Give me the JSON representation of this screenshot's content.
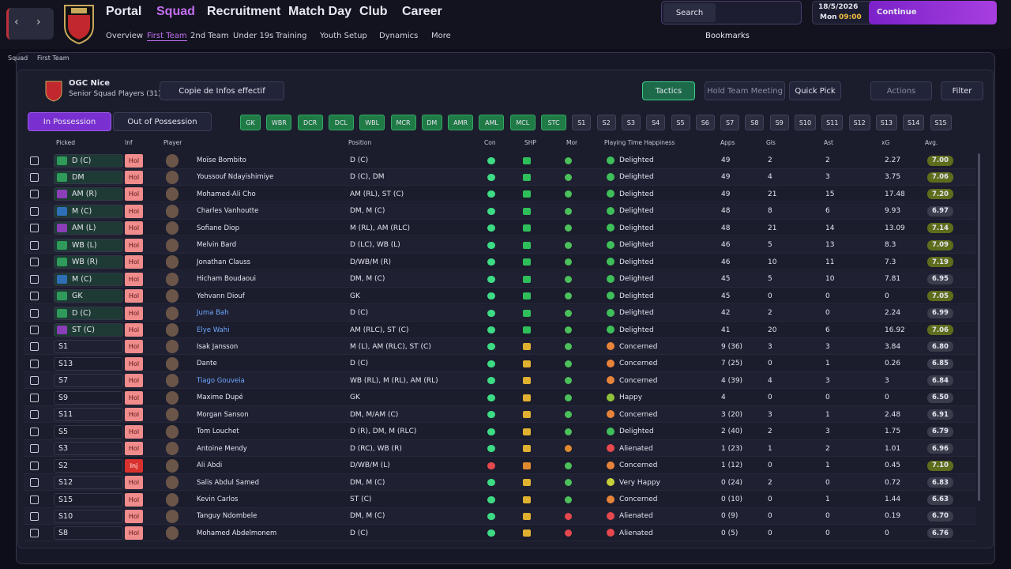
{
  "nav": {
    "menu": [
      "Portal",
      "Squad",
      "Recruitment",
      "Match Day",
      "Club",
      "Career"
    ],
    "submenu": [
      "Overview",
      "First Team",
      "2nd Team",
      "Under 19s",
      "Training",
      "Youth Setup",
      "Dynamics",
      "More"
    ],
    "search": "Search",
    "date": "18/5/2026",
    "day": "Mon",
    "time": "09:00",
    "continue": "Continue",
    "bookmarks": "Bookmarks"
  },
  "breadcrumb": [
    "Squad",
    "First Team"
  ],
  "header": {
    "club": "OGC Nice",
    "subtitle": "Senior Squad Players (31)",
    "view": "Copie de Infos effectif",
    "buttons": [
      "Tactics",
      "Hold Team Meeting",
      "Quick Pick",
      "Actions",
      "Filter"
    ]
  },
  "tabs": [
    "In Possession",
    "Out of Possession"
  ],
  "positions": [
    "GK",
    "WBR",
    "DCR",
    "DCL",
    "WBL",
    "MCR",
    "DM",
    "AMR",
    "AML",
    "MCL",
    "STC",
    "S1",
    "S2",
    "S3",
    "S4",
    "S5",
    "S6",
    "S7",
    "S8",
    "S9",
    "S10",
    "S11",
    "S12",
    "S13",
    "S14",
    "S15"
  ],
  "table": {
    "columns": [
      "Picked",
      "Inf",
      "Player",
      "Position",
      "Con",
      "SHP",
      "Mor",
      "Playing Time Happiness",
      "Apps",
      "Gls",
      "Ast",
      "xG",
      "Avg."
    ],
    "rows": [
      {
        "picked": "D (C)",
        "picked_color": "#2f9a5a",
        "inf": "Hol",
        "inf_color": "#f08c8c",
        "name": "Moïse Bombito",
        "name_color": "#e4e5ee",
        "position": "D (C)",
        "con_color": "#3ddc84",
        "shp_color": "#2fbf5a",
        "mor_color": "#4cc05a",
        "happiness": "Delighted",
        "hap_color": "#3fbf5a",
        "apps": "49",
        "gls": "2",
        "ast": "2",
        "xg": "2.27",
        "avg": "7.00",
        "avg_color": "#5e6d1c"
      },
      {
        "picked": "DM",
        "picked_color": "#2f9a5a",
        "inf": "Hol",
        "inf_color": "#f08c8c",
        "name": "Youssouf Ndayishimiye",
        "name_color": "#e4e5ee",
        "position": "D (C), DM",
        "con_color": "#3ddc84",
        "shp_color": "#2fbf5a",
        "mor_color": "#4cc05a",
        "happiness": "Delighted",
        "hap_color": "#3fbf5a",
        "apps": "49",
        "gls": "4",
        "ast": "3",
        "xg": "3.75",
        "avg": "7.06",
        "avg_color": "#5e6d1c"
      },
      {
        "picked": "AM (R)",
        "picked_color": "#8a3fb8",
        "inf": "Hol",
        "inf_color": "#f08c8c",
        "name": "Mohamed-Ali Cho",
        "name_color": "#e4e5ee",
        "position": "AM (RL), ST (C)",
        "con_color": "#3ddc84",
        "shp_color": "#2fbf5a",
        "mor_color": "#4cc05a",
        "happiness": "Delighted",
        "hap_color": "#3fbf5a",
        "apps": "49",
        "gls": "21",
        "ast": "15",
        "xg": "17.48",
        "avg": "7.20",
        "avg_color": "#5e6d1c"
      },
      {
        "picked": "M (C)",
        "picked_color": "#2f6fb8",
        "inf": "Hol",
        "inf_color": "#f08c8c",
        "name": "Charles Vanhoutte",
        "name_color": "#e4e5ee",
        "position": "DM, M (C)",
        "con_color": "#3ddc84",
        "shp_color": "#2fbf5a",
        "mor_color": "#4cc05a",
        "happiness": "Delighted",
        "hap_color": "#3fbf5a",
        "apps": "48",
        "gls": "8",
        "ast": "6",
        "xg": "9.93",
        "avg": "6.97",
        "avg_color": "#3a3d4c"
      },
      {
        "picked": "AM (L)",
        "picked_color": "#8a3fb8",
        "inf": "Hol",
        "inf_color": "#f08c8c",
        "name": "Sofiane Diop",
        "name_color": "#e4e5ee",
        "position": "M (RL), AM (RLC)",
        "con_color": "#3ddc84",
        "shp_color": "#2fbf5a",
        "mor_color": "#4cc05a",
        "happiness": "Delighted",
        "hap_color": "#3fbf5a",
        "apps": "48",
        "gls": "21",
        "ast": "14",
        "xg": "13.09",
        "avg": "7.14",
        "avg_color": "#5e6d1c"
      },
      {
        "picked": "WB (L)",
        "picked_color": "#2f9a5a",
        "inf": "Hol",
        "inf_color": "#f08c8c",
        "name": "Melvin Bard",
        "name_color": "#e4e5ee",
        "position": "D (LC), WB (L)",
        "con_color": "#3ddc84",
        "shp_color": "#2fbf5a",
        "mor_color": "#4cc05a",
        "happiness": "Delighted",
        "hap_color": "#3fbf5a",
        "apps": "46",
        "gls": "5",
        "ast": "13",
        "xg": "8.3",
        "avg": "7.09",
        "avg_color": "#5e6d1c"
      },
      {
        "picked": "WB (R)",
        "picked_color": "#2f9a5a",
        "inf": "Hol",
        "inf_color": "#f08c8c",
        "name": "Jonathan Clauss",
        "name_color": "#e4e5ee",
        "position": "D/WB/M (R)",
        "con_color": "#3ddc84",
        "shp_color": "#2fbf5a",
        "mor_color": "#4cc05a",
        "happiness": "Delighted",
        "hap_color": "#3fbf5a",
        "apps": "46",
        "gls": "10",
        "ast": "11",
        "xg": "7.3",
        "avg": "7.19",
        "avg_color": "#5e6d1c"
      },
      {
        "picked": "M (C)",
        "picked_color": "#2f6fb8",
        "inf": "Hol",
        "inf_color": "#f08c8c",
        "name": "Hicham Boudaoui",
        "name_color": "#e4e5ee",
        "position": "DM, M (C)",
        "con_color": "#3ddc84",
        "shp_color": "#2fbf5a",
        "mor_color": "#4cc05a",
        "happiness": "Delighted",
        "hap_color": "#3fbf5a",
        "apps": "45",
        "gls": "5",
        "ast": "10",
        "xg": "7.81",
        "avg": "6.95",
        "avg_color": "#3a3d4c"
      },
      {
        "picked": "GK",
        "picked_color": "#2f9a5a",
        "inf": "Hol",
        "inf_color": "#f08c8c",
        "name": "Yehvann Diouf",
        "name_color": "#e4e5ee",
        "position": "GK",
        "con_color": "#3ddc84",
        "shp_color": "#2fbf5a",
        "mor_color": "#4cc05a",
        "happiness": "Delighted",
        "hap_color": "#3fbf5a",
        "apps": "45",
        "gls": "0",
        "ast": "0",
        "xg": "0",
        "avg": "7.05",
        "avg_color": "#5e6d1c"
      },
      {
        "picked": "D (C)",
        "picked_color": "#2f9a5a",
        "inf": "Hol",
        "inf_color": "#f08c8c",
        "name": "Juma Bah",
        "name_color": "#6fa8ff",
        "position": "D (C)",
        "con_color": "#3ddc84",
        "shp_color": "#2fbf5a",
        "mor_color": "#4cc05a",
        "happiness": "Delighted",
        "hap_color": "#3fbf5a",
        "apps": "42",
        "gls": "2",
        "ast": "0",
        "xg": "2.24",
        "avg": "6.99",
        "avg_color": "#3a3d4c"
      },
      {
        "picked": "ST (C)",
        "picked_color": "#8a3fb8",
        "inf": "Hol",
        "inf_color": "#f08c8c",
        "name": "Elye Wahi",
        "name_color": "#6fa8ff",
        "position": "AM (RLC), ST (C)",
        "con_color": "#3ddc84",
        "shp_color": "#2fbf5a",
        "mor_color": "#4cc05a",
        "happiness": "Delighted",
        "hap_color": "#3fbf5a",
        "apps": "41",
        "gls": "20",
        "ast": "6",
        "xg": "16.92",
        "avg": "7.06",
        "avg_color": "#5e6d1c"
      },
      {
        "picked": "S1",
        "inf": "Hol",
        "inf_color": "#f08c8c",
        "name": "Isak Jansson",
        "name_color": "#e4e5ee",
        "position": "M (L), AM (RLC), ST (C)",
        "con_color": "#3ddc84",
        "shp_color": "#e0b030",
        "mor_color": "#4cc05a",
        "happiness": "Concerned",
        "hap_color": "#e8843a",
        "apps": "9 (36)",
        "gls": "3",
        "ast": "3",
        "xg": "3.84",
        "avg": "6.80",
        "avg_color": "#3a3d4c"
      },
      {
        "picked": "S13",
        "inf": "Hol",
        "inf_color": "#f08c8c",
        "name": "Dante",
        "name_color": "#e4e5ee",
        "position": "D (C)",
        "con_color": "#3ddc84",
        "shp_color": "#e0b030",
        "mor_color": "#4cc05a",
        "happiness": "Concerned",
        "hap_color": "#e8843a",
        "apps": "7 (25)",
        "gls": "0",
        "ast": "1",
        "xg": "0.26",
        "avg": "6.85",
        "avg_color": "#3a3d4c"
      },
      {
        "picked": "S7",
        "inf": "Hol",
        "inf_color": "#f08c8c",
        "name": "Tiago Gouveia",
        "name_color": "#6fa8ff",
        "position": "WB (RL), M (RL), AM (RL)",
        "con_color": "#3ddc84",
        "shp_color": "#e0b030",
        "mor_color": "#4cc05a",
        "happiness": "Concerned",
        "hap_color": "#e8843a",
        "apps": "4 (39)",
        "gls": "4",
        "ast": "3",
        "xg": "3",
        "avg": "6.84",
        "avg_color": "#3a3d4c"
      },
      {
        "picked": "S9",
        "inf": "Hol",
        "inf_color": "#f08c8c",
        "name": "Maxime Dupé",
        "name_color": "#e4e5ee",
        "position": "GK",
        "con_color": "#3ddc84",
        "shp_color": "#e0b030",
        "mor_color": "#4cc05a",
        "happiness": "Happy",
        "hap_color": "#8fc43a",
        "apps": "4",
        "gls": "0",
        "ast": "0",
        "xg": "0",
        "avg": "6.50",
        "avg_color": "#3a3d4c"
      },
      {
        "picked": "S11",
        "inf": "Hol",
        "inf_color": "#f08c8c",
        "name": "Morgan Sanson",
        "name_color": "#e4e5ee",
        "position": "DM, M/AM (C)",
        "con_color": "#3ddc84",
        "shp_color": "#e0b030",
        "mor_color": "#4cc05a",
        "happiness": "Concerned",
        "hap_color": "#e8843a",
        "apps": "3 (20)",
        "gls": "3",
        "ast": "1",
        "xg": "2.48",
        "avg": "6.91",
        "avg_color": "#3a3d4c"
      },
      {
        "picked": "S5",
        "inf": "Hol",
        "inf_color": "#f08c8c",
        "name": "Tom Louchet",
        "name_color": "#e4e5ee",
        "position": "D (R), DM, M (RLC)",
        "con_color": "#3ddc84",
        "shp_color": "#e0b030",
        "mor_color": "#4cc05a",
        "happiness": "Delighted",
        "hap_color": "#3fbf5a",
        "apps": "2 (40)",
        "gls": "2",
        "ast": "3",
        "xg": "1.75",
        "avg": "6.79",
        "avg_color": "#3a3d4c"
      },
      {
        "picked": "S3",
        "inf": "Hol",
        "inf_color": "#f08c8c",
        "name": "Antoine Mendy",
        "name_color": "#e4e5ee",
        "position": "D (RC), WB (R)",
        "con_color": "#3ddc84",
        "shp_color": "#e0b030",
        "mor_color": "#e08a30",
        "happiness": "Alienated",
        "hap_color": "#e5484d",
        "apps": "1 (23)",
        "gls": "1",
        "ast": "2",
        "xg": "1.01",
        "avg": "6.96",
        "avg_color": "#3a3d4c"
      },
      {
        "picked": "S2",
        "inf": "Inj",
        "inf_color": "#d9322e",
        "name": "Ali Abdi",
        "name_color": "#e4e5ee",
        "position": "D/WB/M (L)",
        "con_color": "#e5484d",
        "shp_color": "#e08a30",
        "mor_color": "#4cc05a",
        "happiness": "Concerned",
        "hap_color": "#e8843a",
        "apps": "1 (12)",
        "gls": "0",
        "ast": "1",
        "xg": "0.45",
        "avg": "7.10",
        "avg_color": "#5e6d1c"
      },
      {
        "picked": "S12",
        "inf": "Hol",
        "inf_color": "#f08c8c",
        "name": "Salis Abdul Samed",
        "name_color": "#e4e5ee",
        "position": "DM, M (C)",
        "con_color": "#3ddc84",
        "shp_color": "#e0b030",
        "mor_color": "#4cc05a",
        "happiness": "Very Happy",
        "hap_color": "#c6d03a",
        "apps": "0 (24)",
        "gls": "2",
        "ast": "0",
        "xg": "0.72",
        "avg": "6.83",
        "avg_color": "#3a3d4c"
      },
      {
        "picked": "S15",
        "inf": "Hol",
        "inf_color": "#f08c8c",
        "name": "Kevin Carlos",
        "name_color": "#e4e5ee",
        "position": "ST (C)",
        "con_color": "#3ddc84",
        "shp_color": "#e0b030",
        "mor_color": "#4cc05a",
        "happiness": "Concerned",
        "hap_color": "#e8843a",
        "apps": "0 (10)",
        "gls": "0",
        "ast": "1",
        "xg": "1.44",
        "avg": "6.63",
        "avg_color": "#3a3d4c"
      },
      {
        "picked": "S10",
        "inf": "Hol",
        "inf_color": "#f08c8c",
        "name": "Tanguy Ndombele",
        "name_color": "#e4e5ee",
        "position": "DM, M (C)",
        "con_color": "#3ddc84",
        "shp_color": "#e0b030",
        "mor_color": "#e5484d",
        "happiness": "Alienated",
        "hap_color": "#e5484d",
        "apps": "0 (9)",
        "gls": "0",
        "ast": "0",
        "xg": "0.19",
        "avg": "6.70",
        "avg_color": "#3a3d4c"
      },
      {
        "picked": "S8",
        "inf": "Hol",
        "inf_color": "#f08c8c",
        "name": "Mohamed Abdelmonem",
        "name_color": "#e4e5ee",
        "position": "D (C)",
        "con_color": "#3ddc84",
        "shp_color": "#e0b030",
        "mor_color": "#e5484d",
        "happiness": "Alienated",
        "hap_color": "#e5484d",
        "apps": "0 (5)",
        "gls": "0",
        "ast": "0",
        "xg": "0",
        "avg": "6.76",
        "avg_color": "#3a3d4c"
      }
    ]
  }
}
